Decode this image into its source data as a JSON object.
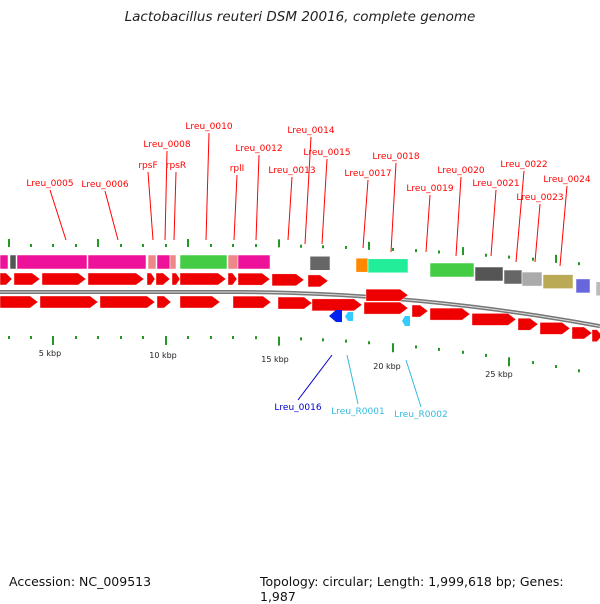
{
  "title": "Lactobacillus reuteri DSM 20016, complete genome",
  "footer": {
    "accession": "Accession: NC_009513",
    "summary": "Topology: circular; Length: 1,999,618 bp; Genes: 1,987"
  },
  "scale_labels": [
    "5 kbp",
    "10 kbp",
    "15 kbp",
    "20 kbp",
    "25 kbp"
  ],
  "gene_labels": [
    {
      "text": "Lreu_0005",
      "color": "#ff0000"
    },
    {
      "text": "Lreu_0006",
      "color": "#ff0000"
    },
    {
      "text": "rpsF",
      "color": "#ff0000"
    },
    {
      "text": "Lreu_0008",
      "color": "#ff0000"
    },
    {
      "text": "rpsR",
      "color": "#ff0000"
    },
    {
      "text": "Lreu_0010",
      "color": "#ff0000"
    },
    {
      "text": "rplI",
      "color": "#ff0000"
    },
    {
      "text": "Lreu_0012",
      "color": "#ff0000"
    },
    {
      "text": "Lreu_0013",
      "color": "#ff0000"
    },
    {
      "text": "Lreu_0014",
      "color": "#ff0000"
    },
    {
      "text": "Lreu_0015",
      "color": "#ff0000"
    },
    {
      "text": "Lreu_0017",
      "color": "#ff0000"
    },
    {
      "text": "Lreu_0018",
      "color": "#ff0000"
    },
    {
      "text": "Lreu_0019",
      "color": "#ff0000"
    },
    {
      "text": "Lreu_0020",
      "color": "#ff0000"
    },
    {
      "text": "Lreu_0021",
      "color": "#ff0000"
    },
    {
      "text": "Lreu_0022",
      "color": "#ff0000"
    },
    {
      "text": "Lreu_0023",
      "color": "#ff0000"
    },
    {
      "text": "Lreu_0024",
      "color": "#ff0000"
    },
    {
      "text": "Lreu_0016",
      "color": "#0000cc"
    },
    {
      "text": "Lreu_R0001",
      "color": "#33bbdd"
    },
    {
      "text": "Lreu_R0002",
      "color": "#33bbdd"
    }
  ],
  "colors": {
    "cds_forward": "#ee0000",
    "cds_reverse": "#0022ee",
    "rna": "#33ccff",
    "backbone": "#777777",
    "gc_ticks": "#229922",
    "cog_bar_colors": [
      "#ee1199",
      "#555555",
      "#ee8888",
      "#44cc44",
      "#ff8800",
      "#22ee99",
      "#666666",
      "#aaaaaa",
      "#bbaa55",
      "#6666dd",
      "#bbbbbb"
    ]
  }
}
